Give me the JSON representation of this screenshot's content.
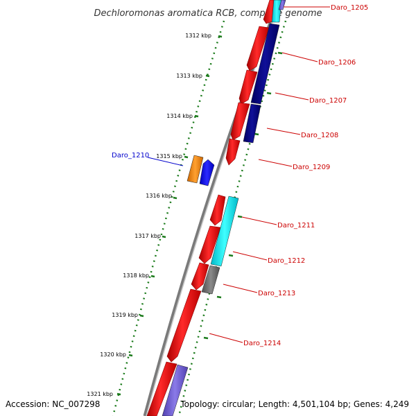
{
  "title": "Dechloromonas aromatica RCB, complete genome",
  "accession": "Accession: NC_007298",
  "topology": "Topology: circular; Length: 4,501,104 bp; Genes: 4,249",
  "colors": {
    "backbone": "#7a7a7a",
    "tick": "#1a7a1a",
    "forward_label": "#cc0000",
    "highlight_label": "#0000cc",
    "gene_red": "#ee0000",
    "gene_navy": "#000080",
    "gene_cyan": "#00e5ee",
    "gene_orange": "#ff8c00",
    "gene_blue": "#0000ff",
    "gene_gray": "#707070",
    "gene_slate": "#6a5acd"
  },
  "ticks": [
    "1312 kbp",
    "1313 kbp",
    "1314 kbp",
    "1315 kbp",
    "1316 kbp",
    "1317 kbp",
    "1318 kbp",
    "1319 kbp",
    "1320 kbp",
    "1321 kbp"
  ],
  "labels": [
    "Daro_1205",
    "Daro_1206",
    "Daro_1207",
    "Daro_1208",
    "Daro_1209",
    "Daro_1210",
    "Daro_1211",
    "Daro_1212",
    "Daro_1213",
    "Daro_1214"
  ]
}
